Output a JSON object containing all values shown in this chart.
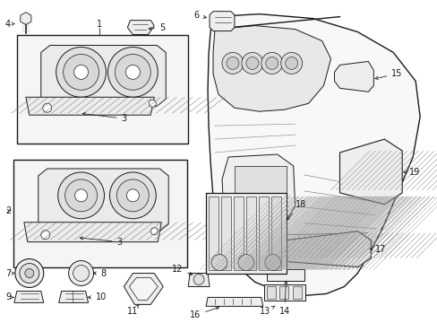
{
  "bg_color": "#ffffff",
  "lc": "#1a1a1a",
  "fig_w": 4.89,
  "fig_h": 3.6,
  "dpi": 100,
  "fs": 7.0,
  "fs_small": 6.5
}
